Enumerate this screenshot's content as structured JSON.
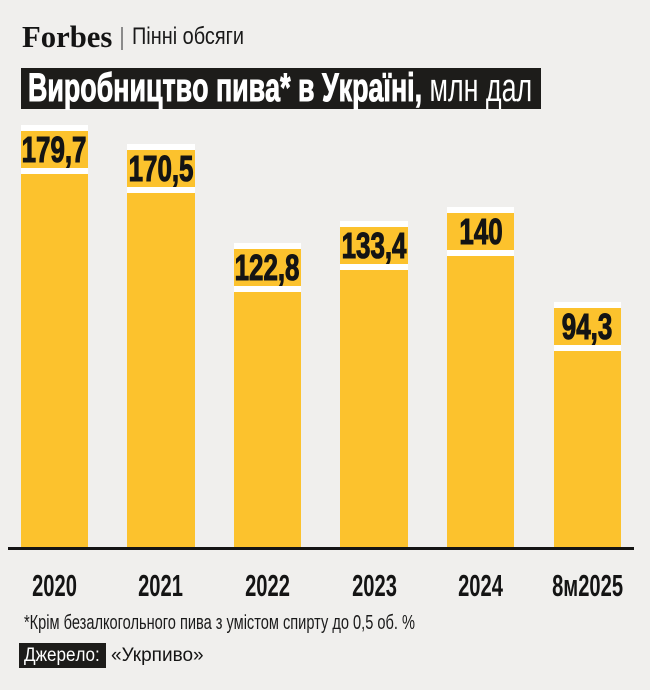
{
  "header": {
    "brand": "Forbes",
    "rubric": "Пінні обсяги"
  },
  "title": {
    "strong": "Виробництво пива* в Україні,",
    "unit_suffix": " млн дал"
  },
  "chart_data": {
    "type": "bar",
    "title": "Виробництво пива* в Україні, млн дал",
    "categories": [
      "2020",
      "2021",
      "2022",
      "2023",
      "2024",
      "8м2025"
    ],
    "values": [
      179.7,
      170.5,
      122.8,
      133.4,
      140,
      94.3
    ],
    "value_labels": [
      "179,7",
      "170,5",
      "122,8",
      "133,4",
      "140",
      "94,3"
    ],
    "xlabel": "",
    "ylabel": "млн дал",
    "ylim": [
      0,
      190
    ],
    "grid": false,
    "legend": null,
    "bar_color": "#FCC22D",
    "background_color": "#F0EFED",
    "accent_black": "#1D1C1A"
  },
  "footer": {
    "note": "*Крім безалкогольного пива з умістом спирту до 0,5 об. %",
    "source_label": "Джерело:",
    "source_name": "«Укрпиво»"
  }
}
